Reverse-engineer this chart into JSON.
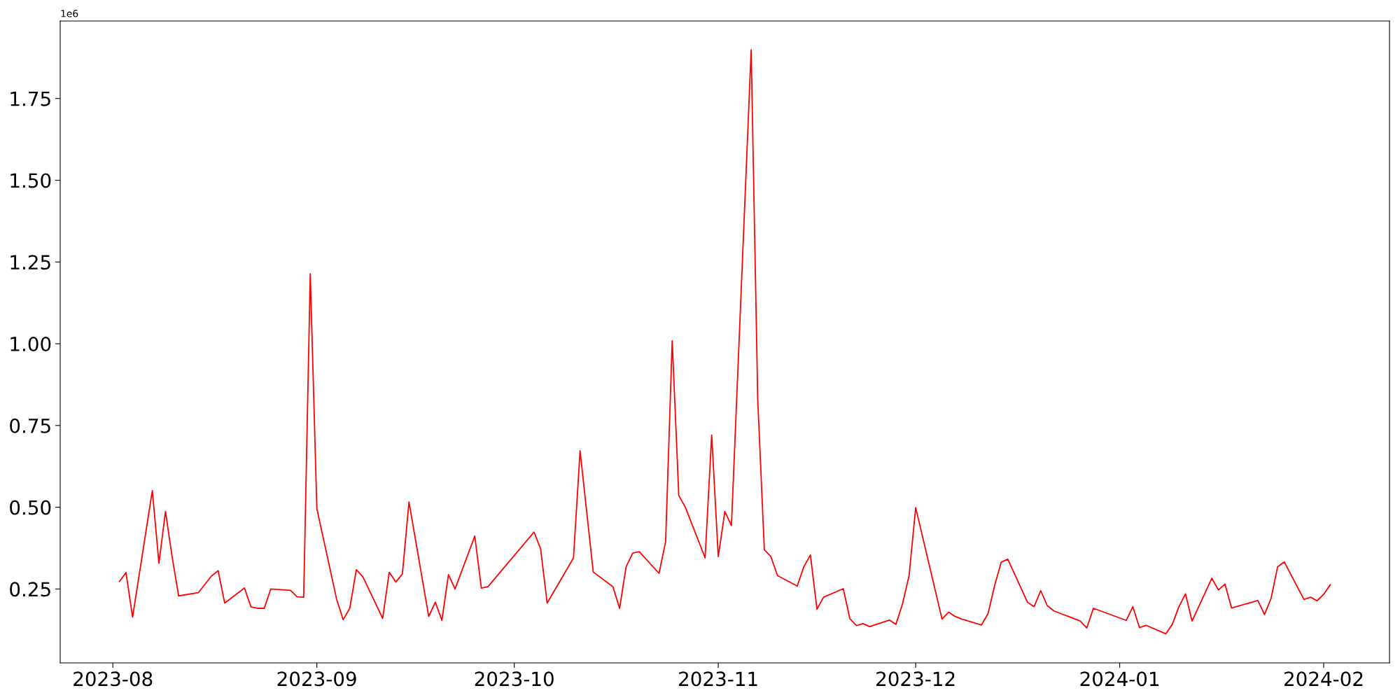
{
  "chart_data": {
    "type": "line",
    "x": [
      "2023-08-02",
      "2023-08-03",
      "2023-08-04",
      "2023-08-07",
      "2023-08-08",
      "2023-08-09",
      "2023-08-10",
      "2023-08-11",
      "2023-08-14",
      "2023-08-16",
      "2023-08-17",
      "2023-08-18",
      "2023-08-21",
      "2023-08-22",
      "2023-08-23",
      "2023-08-24",
      "2023-08-25",
      "2023-08-28",
      "2023-08-29",
      "2023-08-30",
      "2023-08-31",
      "2023-09-01",
      "2023-09-04",
      "2023-09-05",
      "2023-09-06",
      "2023-09-07",
      "2023-09-08",
      "2023-09-11",
      "2023-09-12",
      "2023-09-13",
      "2023-09-14",
      "2023-09-15",
      "2023-09-18",
      "2023-09-19",
      "2023-09-20",
      "2023-09-21",
      "2023-09-22",
      "2023-09-25",
      "2023-09-26",
      "2023-09-27",
      "2023-10-04",
      "2023-10-05",
      "2023-10-06",
      "2023-10-10",
      "2023-10-11",
      "2023-10-13",
      "2023-10-16",
      "2023-10-17",
      "2023-10-18",
      "2023-10-19",
      "2023-10-20",
      "2023-10-23",
      "2023-10-24",
      "2023-10-25",
      "2023-10-26",
      "2023-10-27",
      "2023-10-30",
      "2023-10-31",
      "2023-11-01",
      "2023-11-02",
      "2023-11-03",
      "2023-11-06",
      "2023-11-07",
      "2023-11-08",
      "2023-11-09",
      "2023-11-10",
      "2023-11-13",
      "2023-11-14",
      "2023-11-15",
      "2023-11-16",
      "2023-11-17",
      "2023-11-20",
      "2023-11-21",
      "2023-11-22",
      "2023-11-23",
      "2023-11-24",
      "2023-11-27",
      "2023-11-28",
      "2023-11-29",
      "2023-11-30",
      "2023-12-01",
      "2023-12-05",
      "2023-12-06",
      "2023-12-07",
      "2023-12-08",
      "2023-12-11",
      "2023-12-12",
      "2023-12-13",
      "2023-12-14",
      "2023-12-15",
      "2023-12-18",
      "2023-12-19",
      "2023-12-20",
      "2023-12-21",
      "2023-12-22",
      "2023-12-26",
      "2023-12-27",
      "2023-12-28",
      "2024-01-02",
      "2024-01-03",
      "2024-01-04",
      "2024-01-05",
      "2024-01-08",
      "2024-01-09",
      "2024-01-10",
      "2024-01-11",
      "2024-01-12",
      "2024-01-15",
      "2024-01-16",
      "2024-01-17",
      "2024-01-18",
      "2024-01-22",
      "2024-01-23",
      "2024-01-24",
      "2024-01-25",
      "2024-01-26",
      "2024-01-29",
      "2024-01-30",
      "2024-01-31",
      "2024-02-01",
      "2024-02-02"
    ],
    "series": [
      {
        "color": "#ff0000",
        "values": [
          0.273,
          0.3,
          0.164,
          0.551,
          0.329,
          0.487,
          0.349,
          0.229,
          0.239,
          0.29,
          0.306,
          0.207,
          0.253,
          0.195,
          0.191,
          0.191,
          0.25,
          0.246,
          0.226,
          0.225,
          1.214,
          0.496,
          0.219,
          0.156,
          0.191,
          0.309,
          0.287,
          0.16,
          0.301,
          0.271,
          0.296,
          0.516,
          0.166,
          0.21,
          0.154,
          0.294,
          0.25,
          0.412,
          0.253,
          0.257,
          0.424,
          0.373,
          0.207,
          0.345,
          0.673,
          0.302,
          0.257,
          0.191,
          0.318,
          0.36,
          0.364,
          0.298,
          0.395,
          1.009,
          0.536,
          0.5,
          0.345,
          0.721,
          0.349,
          0.487,
          0.444,
          1.899,
          0.828,
          0.37,
          0.349,
          0.291,
          0.259,
          0.318,
          0.354,
          0.188,
          0.225,
          0.251,
          0.159,
          0.138,
          0.144,
          0.135,
          0.155,
          0.142,
          0.205,
          0.291,
          0.499,
          0.158,
          0.179,
          0.166,
          0.158,
          0.14,
          0.175,
          0.261,
          0.332,
          0.341,
          0.209,
          0.196,
          0.245,
          0.199,
          0.183,
          0.152,
          0.131,
          0.191,
          0.154,
          0.196,
          0.132,
          0.139,
          0.113,
          0.142,
          0.196,
          0.235,
          0.152,
          0.283,
          0.247,
          0.265,
          0.192,
          0.215,
          0.172,
          0.221,
          0.318,
          0.333,
          0.218,
          0.225,
          0.214,
          0.234,
          0.263
        ]
      }
    ],
    "xlim": [
      "2023-07-24",
      "2024-02-11"
    ],
    "xticks": [
      {
        "value": "2023-08",
        "label": "2023-08"
      },
      {
        "value": "2023-09",
        "label": "2023-09"
      },
      {
        "value": "2023-10",
        "label": "2023-10"
      },
      {
        "value": "2023-11",
        "label": "2023-11"
      },
      {
        "value": "2023-12",
        "label": "2023-12"
      },
      {
        "value": "2024-01",
        "label": "2024-01"
      },
      {
        "value": "2024-02",
        "label": "2024-02"
      }
    ],
    "ylim": [
      0.024,
      1.987
    ],
    "yticks": [
      0.25,
      {
        "value": 0.5,
        "label": "0.50"
      },
      0.75,
      {
        "value": 1.0,
        "label": "1.00"
      },
      1.25,
      {
        "value": 1.5,
        "label": "1.50"
      },
      1.75
    ],
    "annotations": [
      "1e6"
    ],
    "grid": false,
    "marker": "none",
    "line_style": "solid"
  }
}
